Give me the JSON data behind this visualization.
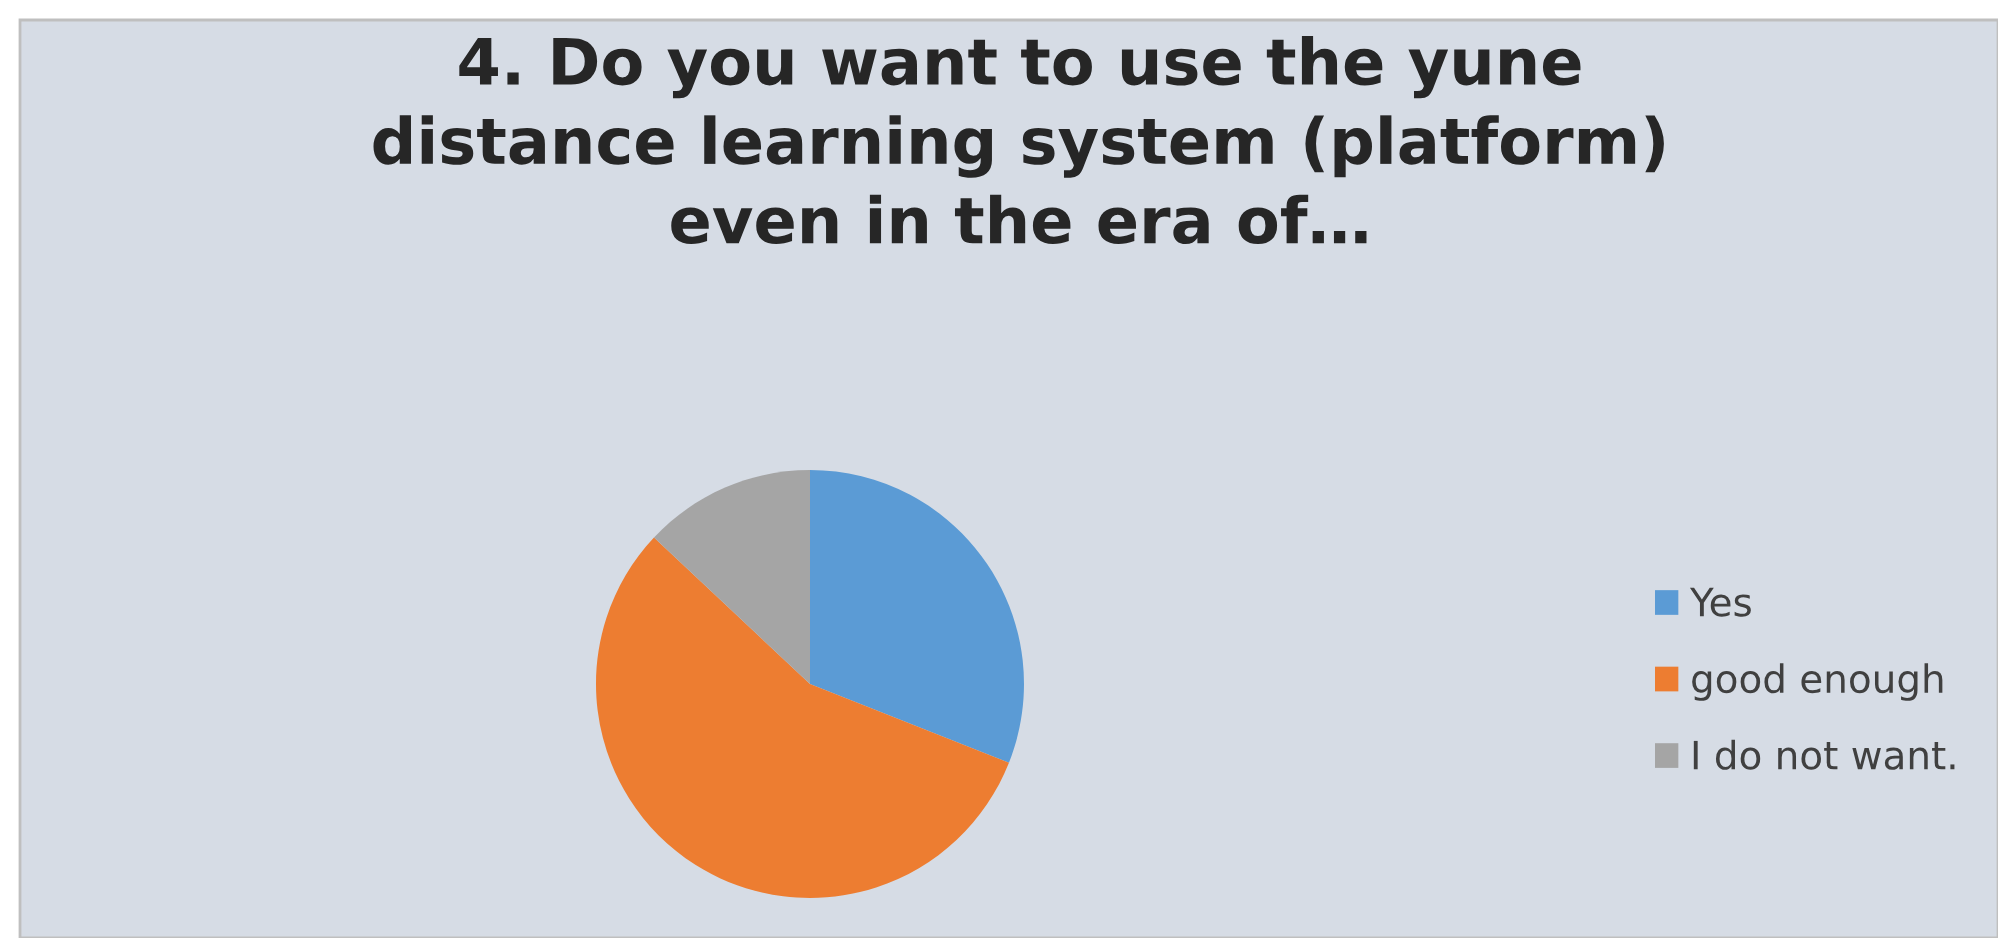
{
  "chart_data": {
    "type": "pie",
    "title": "4. Do you want to use the yune distance learning system (platform) even in the era of…",
    "categories": [
      "Yes",
      "good enough",
      "I do not want."
    ],
    "values": [
      31,
      56,
      13
    ],
    "colors": [
      "#5b9bd5",
      "#ed7d31",
      "#a5a5a5"
    ],
    "legend": "right"
  }
}
